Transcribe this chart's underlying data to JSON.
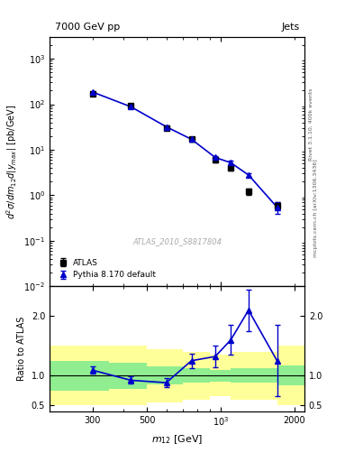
{
  "title_left": "7000 GeV pp",
  "title_right": "Jets",
  "ylabel_main": "d²σ/dm₁₂d|y_max| [pb/GeV]",
  "ylabel_ratio": "Ratio to ATLAS",
  "xlabel": "m₁₂ [GeV]",
  "right_label_main": "Rivet 3.1.10, 400k events",
  "right_label_sub": "mcplots.cern.ch [arXiv:1306.3436]",
  "watermark": "ATLAS_2010_S8817804",
  "atlas_x": [
    300,
    430,
    600,
    760,
    950,
    1100,
    1300,
    1700
  ],
  "atlas_y": [
    170,
    95,
    30,
    17,
    6.0,
    4.0,
    1.2,
    0.6
  ],
  "atlas_yerr": [
    15,
    8,
    3,
    2,
    0.7,
    0.5,
    0.2,
    0.1
  ],
  "pythia_x": [
    300,
    430,
    600,
    760,
    950,
    1100,
    1300,
    1700
  ],
  "pythia_y": [
    185,
    88,
    32,
    17,
    6.8,
    5.2,
    2.8,
    0.55
  ],
  "pythia_yerr": [
    10,
    5,
    2,
    1.5,
    0.6,
    0.5,
    0.3,
    0.15
  ],
  "ratio_x": [
    300,
    430,
    600,
    760,
    950,
    1100,
    1300,
    1700
  ],
  "ratio_y": [
    1.09,
    0.92,
    0.88,
    1.25,
    1.32,
    1.6,
    2.1,
    1.25
  ],
  "ratio_yerr": [
    0.06,
    0.06,
    0.07,
    0.12,
    0.18,
    0.25,
    0.35,
    0.6
  ],
  "band_x_edges": [
    200,
    350,
    500,
    700,
    900,
    1100,
    1700,
    2200
  ],
  "green_band_low": [
    0.75,
    0.78,
    0.85,
    0.88,
    0.9,
    0.88,
    0.83,
    0.83
  ],
  "green_band_high": [
    1.25,
    1.22,
    1.15,
    1.12,
    1.1,
    1.12,
    1.17,
    1.17
  ],
  "yellow_band_low": [
    0.5,
    0.5,
    0.55,
    0.6,
    0.65,
    0.6,
    0.5,
    0.5
  ],
  "yellow_band_high": [
    1.5,
    1.5,
    1.45,
    1.4,
    1.35,
    1.4,
    1.5,
    1.5
  ],
  "xlim": [
    200,
    2200
  ],
  "ylim_main": [
    0.01,
    3000
  ],
  "ylim_ratio": [
    0.4,
    2.5
  ],
  "atlas_color": "#000000",
  "pythia_color": "#0000cc",
  "green_color": "#90ee90",
  "yellow_color": "#ffff99",
  "line_color": "#000000"
}
